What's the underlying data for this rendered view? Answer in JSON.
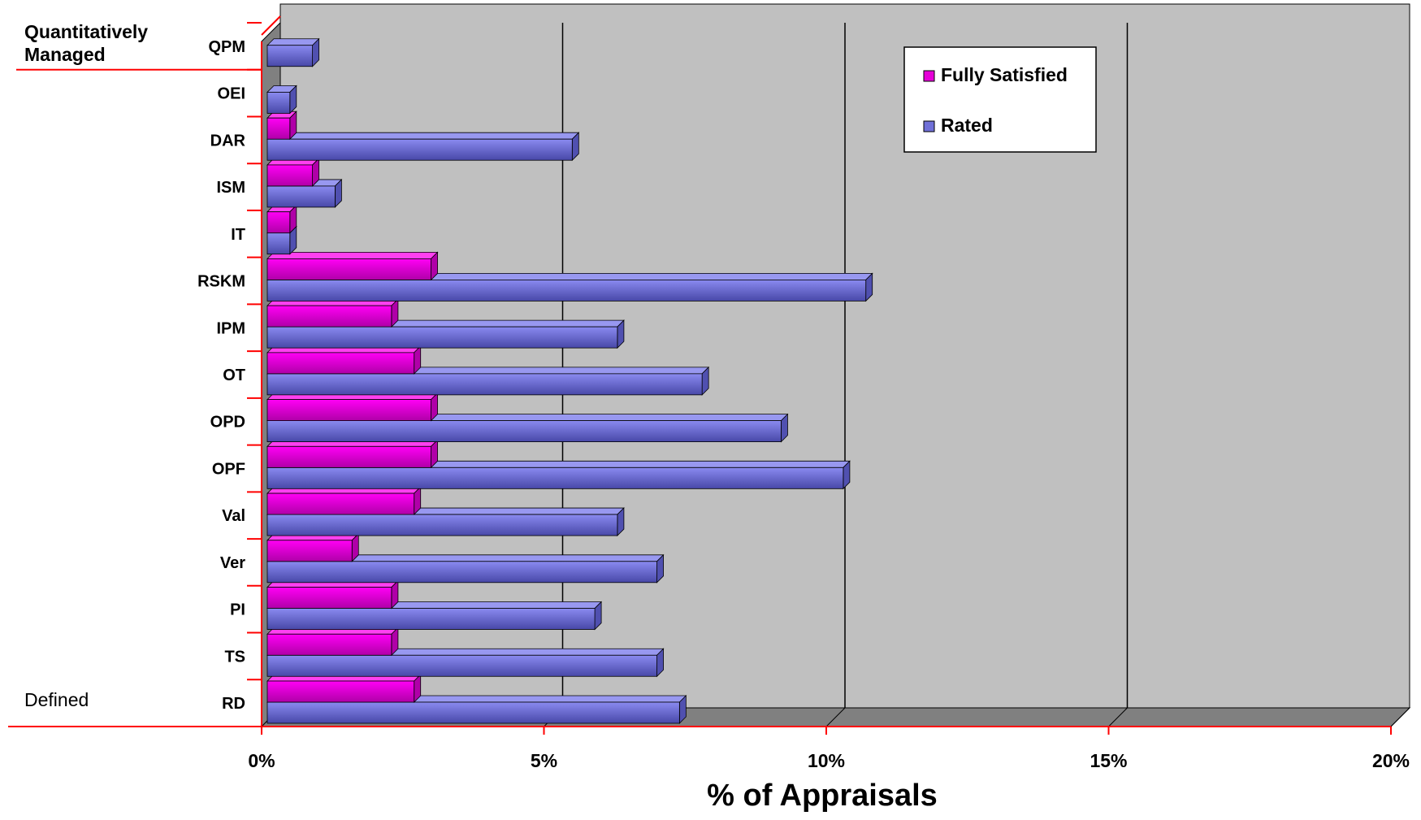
{
  "chart_data": {
    "type": "bar",
    "orientation": "horizontal",
    "categories": [
      "RD",
      "TS",
      "PI",
      "Ver",
      "Val",
      "OPF",
      "OPD",
      "OT",
      "IPM",
      "RSKM",
      "IT",
      "ISM",
      "DAR",
      "OEI",
      "QPM"
    ],
    "series": [
      {
        "name": "Fully Satisfied",
        "color": "#e600d8",
        "values": [
          2.6,
          2.2,
          2.2,
          1.5,
          2.6,
          2.9,
          2.9,
          2.6,
          2.2,
          2.9,
          0.4,
          0.8,
          0.4,
          0,
          0
        ]
      },
      {
        "name": "Rated",
        "color": "#7070d8",
        "values": [
          7.3,
          6.9,
          5.8,
          6.9,
          6.2,
          10.2,
          9.1,
          7.7,
          6.2,
          10.6,
          0.4,
          1.2,
          5.4,
          0.4,
          0.8
        ]
      }
    ],
    "xlabel": "% of Appraisals",
    "xlim": [
      0,
      20
    ],
    "xticks": [
      "0%",
      "5%",
      "10%",
      "15%",
      "20%"
    ],
    "grid": true,
    "legend_position": "top-right",
    "groups": [
      {
        "label": "Quantitatively Managed",
        "label_lines": [
          "Quantitatively",
          "Managed"
        ],
        "categories": [
          "QPM"
        ]
      },
      {
        "label": "Defined",
        "categories": [
          "OEI",
          "DAR",
          "ISM",
          "IT",
          "RSKM",
          "IPM",
          "OT",
          "OPD",
          "OPF",
          "Val",
          "Ver",
          "PI",
          "TS",
          "RD"
        ]
      }
    ],
    "colors": {
      "plot_background": "#c0c0c0",
      "wall_side": "#808080",
      "axis_line": "#ff0000",
      "gridline": "#000000"
    }
  }
}
